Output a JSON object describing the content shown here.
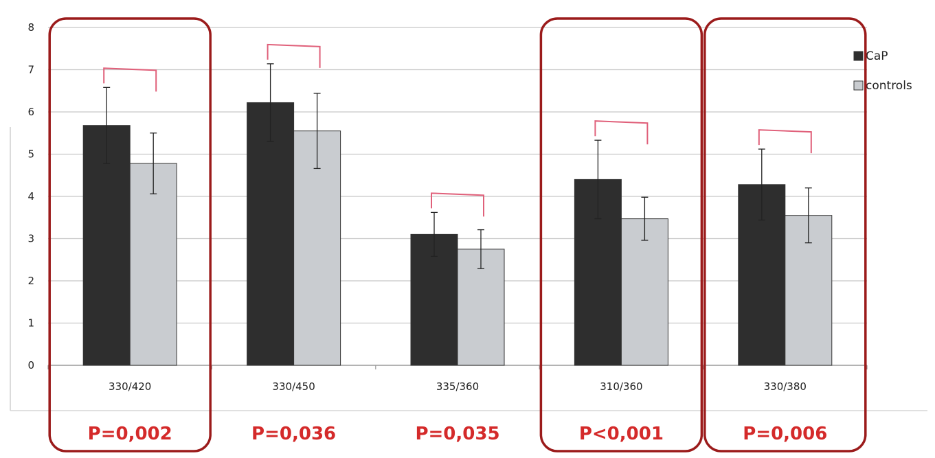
{
  "chart_data": {
    "type": "bar",
    "categories": [
      "330/420",
      "330/450",
      "335/360",
      "310/360",
      "330/380"
    ],
    "series": [
      {
        "name": "CaP",
        "color": "#2e2e2e",
        "values": [
          5.68,
          6.22,
          3.1,
          4.4,
          4.28
        ],
        "errors": [
          0.9,
          0.92,
          0.52,
          0.93,
          0.84
        ]
      },
      {
        "name": "controls",
        "color": "#c9ccd0",
        "values": [
          4.78,
          5.55,
          2.75,
          3.47,
          3.55
        ],
        "errors": [
          0.72,
          0.89,
          0.46,
          0.51,
          0.65
        ]
      }
    ],
    "ylim": [
      0,
      8
    ],
    "yticks": [
      "0",
      "1",
      "2",
      "3",
      "4",
      "5",
      "6",
      "7",
      "8"
    ],
    "grid": true,
    "legend_position": "top-right",
    "xlabel": "",
    "ylabel": "",
    "annotations": {
      "p_values": [
        "P=0,002",
        "P=0,036",
        "P=0,035",
        "P<0,001",
        "P=0,006"
      ],
      "highlighted_categories": [
        0,
        3,
        4
      ],
      "highlight_color": "#9b1b1b",
      "p_value_color": "#d42a2a",
      "bracket_color": "#e0607a"
    }
  }
}
